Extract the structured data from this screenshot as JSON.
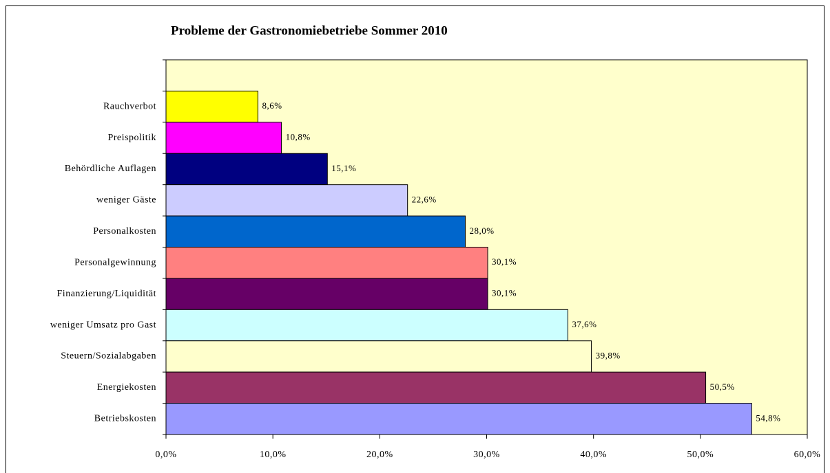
{
  "chart_data": {
    "type": "bar",
    "orientation": "horizontal",
    "title": "Probleme der Gastronomiebetriebe Sommer 2010",
    "categories": [
      "Rauchverbot",
      "Preispolitik",
      "Behördliche Auflagen",
      "weniger Gäste",
      "Personalkosten",
      "Personalgewinnung",
      "Finanzierung/Liquidität",
      "weniger Umsatz pro Gast",
      "Steuern/Sozialabgaben",
      "Energiekosten",
      "Betriebskosten"
    ],
    "values": [
      8.6,
      10.8,
      15.1,
      22.6,
      28.0,
      30.1,
      30.1,
      37.6,
      39.8,
      50.5,
      54.8
    ],
    "value_labels": [
      "8,6%",
      "10,8%",
      "15,1%",
      "22,6%",
      "28,0%",
      "30,1%",
      "30,1%",
      "37,6%",
      "39,8%",
      "50,5%",
      "54,8%"
    ],
    "colors": [
      "#ffff00",
      "#ff00ff",
      "#000080",
      "#ccccff",
      "#0066cc",
      "#ff8080",
      "#660066",
      "#ccffff",
      "#ffffcc",
      "#993366",
      "#9999ff"
    ],
    "xlim": [
      0,
      60
    ],
    "xticks": [
      {
        "value": 0,
        "label": "0,0%"
      },
      {
        "value": 10,
        "label": "10,0%"
      },
      {
        "value": 20,
        "label": "20,0%"
      },
      {
        "value": 30,
        "label": "30,0%"
      },
      {
        "value": 40,
        "label": "40,0%"
      },
      {
        "value": 50,
        "label": "50,0%"
      },
      {
        "value": 60,
        "label": "60,0%"
      }
    ],
    "plot_background": "#ffffcc"
  }
}
